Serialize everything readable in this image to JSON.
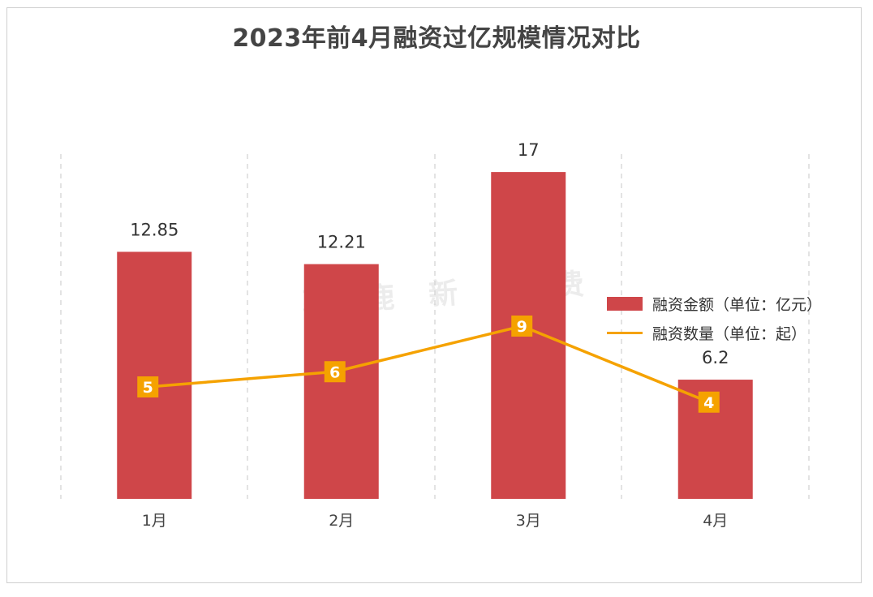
{
  "chart_data": {
    "type": "bar",
    "title": "2023年前4月融资过亿规模情况对比",
    "categories": [
      "1月",
      "2月",
      "3月",
      "4月"
    ],
    "series": [
      {
        "name": "融资金额（单位：亿元）",
        "type": "bar",
        "values": [
          12.85,
          12.21,
          17,
          6.2
        ],
        "color": "#cf4649"
      },
      {
        "name": "融资数量（单位：起）",
        "type": "line",
        "values": [
          5,
          6,
          9,
          4
        ],
        "color": "#f5a200"
      }
    ],
    "grid": "vertical-dashed",
    "legend_position": "right",
    "watermark": "驼鹿新消费"
  }
}
